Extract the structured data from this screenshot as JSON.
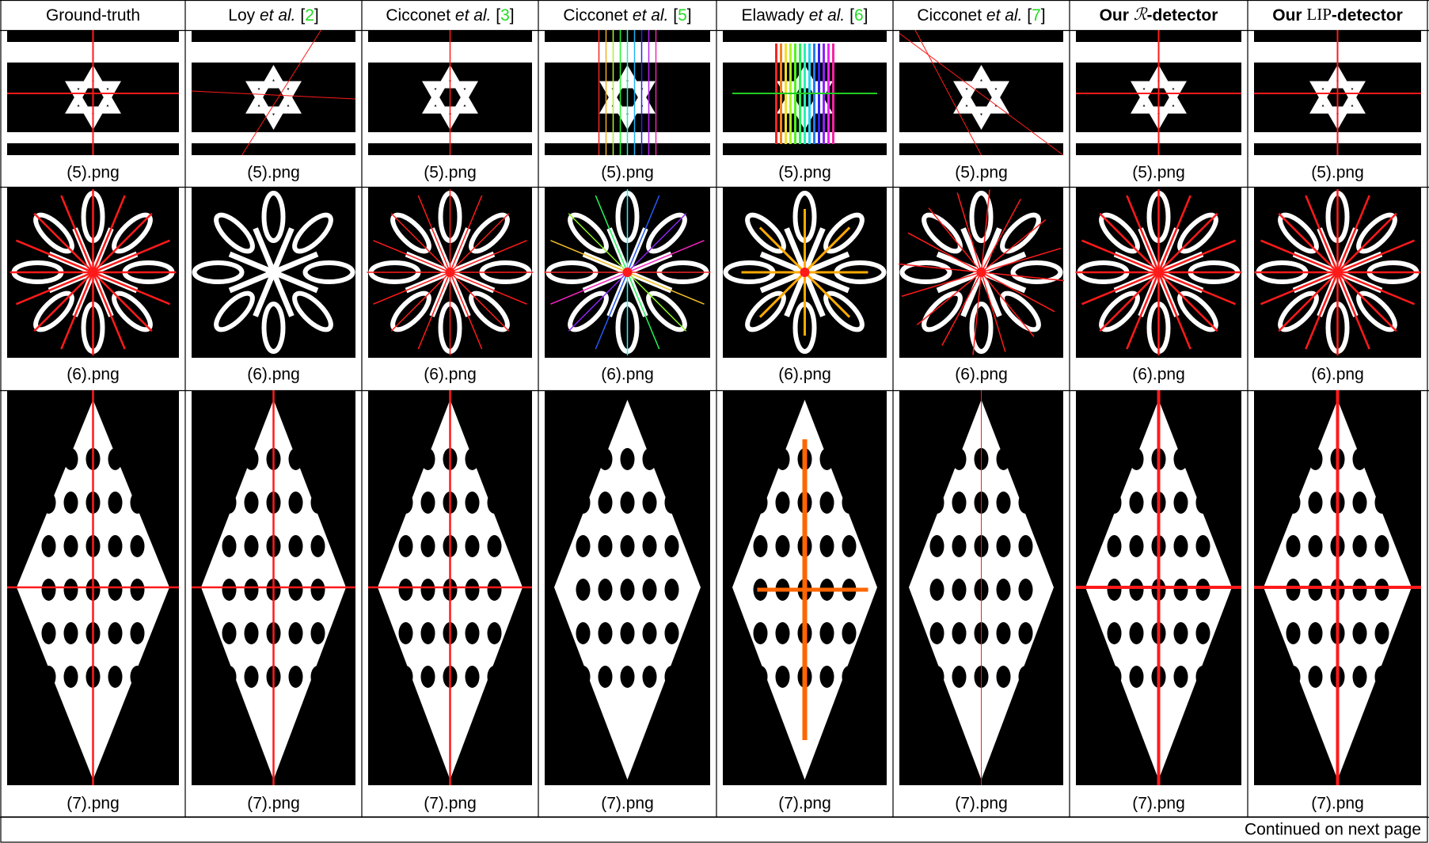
{
  "table": {
    "headers": [
      [
        {
          "text": "Ground-truth"
        }
      ],
      [
        {
          "text": "Loy "
        },
        {
          "text": "et al.",
          "style": "italic"
        },
        {
          "text": " ["
        },
        {
          "text": "2",
          "style": "cite"
        },
        {
          "text": "]"
        }
      ],
      [
        {
          "text": "Cicconet "
        },
        {
          "text": "et al.",
          "style": "italic"
        },
        {
          "text": " ["
        },
        {
          "text": "3",
          "style": "cite"
        },
        {
          "text": "]"
        }
      ],
      [
        {
          "text": "Cicconet "
        },
        {
          "text": "et al.",
          "style": "italic"
        },
        {
          "text": " ["
        },
        {
          "text": "5",
          "style": "cite"
        },
        {
          "text": "]"
        }
      ],
      [
        {
          "text": "Elawady "
        },
        {
          "text": "et al.",
          "style": "italic"
        },
        {
          "text": " ["
        },
        {
          "text": "6",
          "style": "cite"
        },
        {
          "text": "]"
        }
      ],
      [
        {
          "text": "Cicconet "
        },
        {
          "text": "et al.",
          "style": "italic"
        },
        {
          "text": " ["
        },
        {
          "text": "7",
          "style": "cite"
        },
        {
          "text": "]"
        }
      ],
      [
        {
          "text": "Our ",
          "style": "bold"
        },
        {
          "text": "ℛ",
          "style": "math"
        },
        {
          "text": "-detector",
          "style": "bold"
        }
      ],
      [
        {
          "text": "Our ",
          "style": "bold"
        },
        {
          "text": "LIP",
          "style": "roman"
        },
        {
          "text": "-detector",
          "style": "bold"
        }
      ]
    ],
    "rows": [
      [
        "(5).png",
        "(5).png",
        "(5).png",
        "(5).png",
        "(5).png",
        "(5).png",
        "(5).png",
        "(5).png"
      ],
      [
        "(6).png",
        "(6).png",
        "(6).png",
        "(6).png",
        "(6).png",
        "(6).png",
        "(6).png",
        "(6).png"
      ],
      [
        "(7).png",
        "(7).png",
        "(7).png",
        "(7).png",
        "(7).png",
        "(7).png",
        "(7).png",
        "(7).png"
      ]
    ],
    "footer": "Continued on next page"
  }
}
